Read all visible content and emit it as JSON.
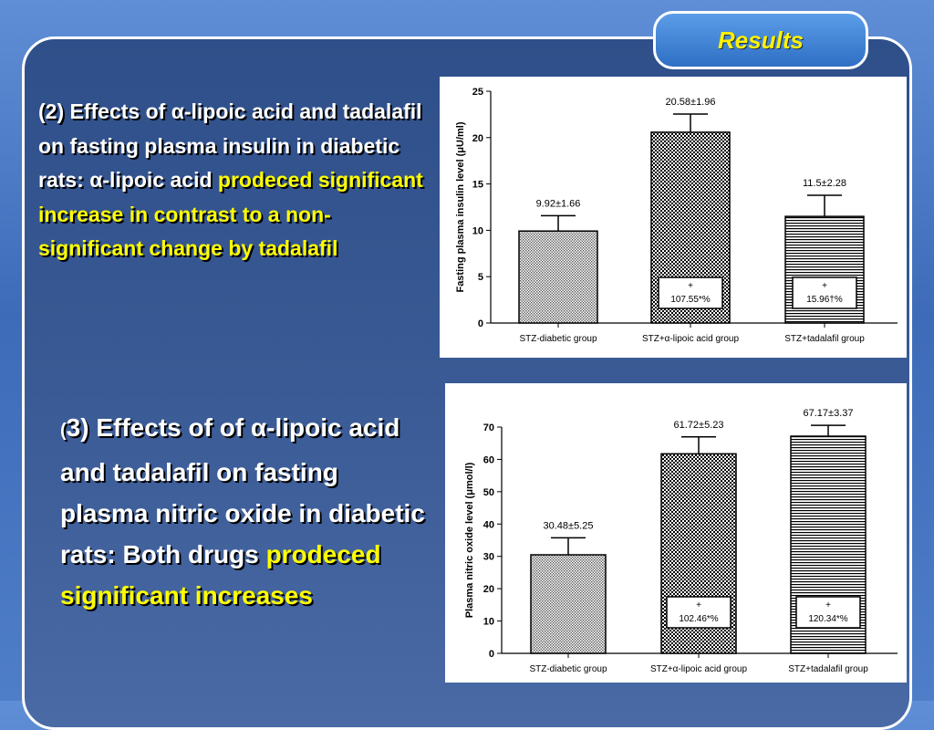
{
  "header": {
    "tab_label": "Results"
  },
  "text1": {
    "part1": "(2) Effects of ",
    "alpha1": "α",
    "part2": "-lipoic acid and tadalafil on fasting plasma insulin in diabetic rats: ",
    "alpha2": "α",
    "part3": "-lipoic acid ",
    "highlight": "prodeced significant increase in contrast to a non-significant change by tadalafil"
  },
  "text2": {
    "part1a": "(",
    "part1b": "3) Effects of of ",
    "alpha1": "α",
    "part2": "-lipoic acid and  tadalafil on fasting plasma nitric oxide in diabetic rats: Both drugs ",
    "highlight": "prodeced significant increases"
  },
  "chart_data": [
    {
      "type": "bar",
      "ylabel": "Fasting plasma insulin level (μU/ml)",
      "ylim": [
        0,
        25
      ],
      "yticks": [
        0,
        5,
        10,
        15,
        20,
        25
      ],
      "categories": [
        "STZ-diabetic group",
        "STZ+α-lipoic acid group",
        "STZ+tadalafil group"
      ],
      "values": [
        9.92,
        20.58,
        11.5
      ],
      "errors": [
        1.66,
        1.96,
        2.28
      ],
      "data_labels": [
        "9.92±1.66",
        "20.58±1.96",
        "11.5±2.28"
      ],
      "annotations": [
        null,
        {
          "line1": "+",
          "line2": "107.55*%"
        },
        {
          "line1": "+",
          "line2": "15.96†%"
        }
      ],
      "fills": [
        "dots",
        "checker",
        "hlines"
      ]
    },
    {
      "type": "bar",
      "ylabel": "Plasma nitric oxide level (μmol/l)",
      "ylim": [
        0,
        70
      ],
      "yticks": [
        0,
        10,
        20,
        30,
        40,
        50,
        60,
        70
      ],
      "categories": [
        "STZ-diabetic group",
        "STZ+α-lipoic acid group",
        "STZ+tadalafil group"
      ],
      "values": [
        30.48,
        61.72,
        67.17
      ],
      "errors": [
        5.25,
        5.23,
        3.37
      ],
      "data_labels": [
        "30.48±5.25",
        "61.72±5.23",
        "67.17±3.37"
      ],
      "annotations": [
        null,
        {
          "line1": "+",
          "line2": "102.46*%"
        },
        {
          "line1": "+",
          "line2": "120.34*%"
        }
      ],
      "fills": [
        "dots",
        "checker",
        "hlines"
      ]
    }
  ]
}
